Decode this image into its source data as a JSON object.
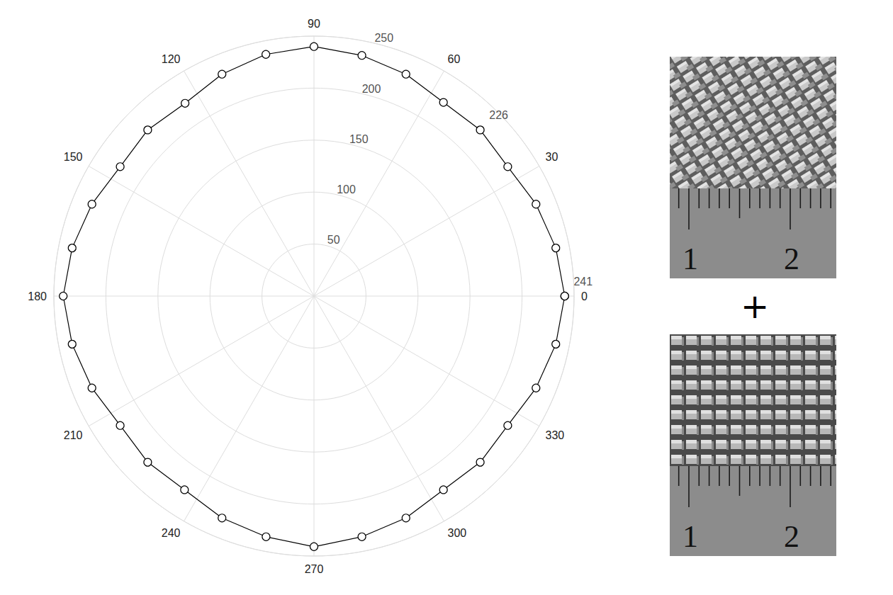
{
  "chart_data": {
    "type": "polar_line",
    "x": [
      0,
      11.25,
      22.5,
      33.75,
      45,
      56.25,
      67.5,
      78.75,
      90,
      101.25,
      112.5,
      123.75,
      135,
      146.25,
      157.5,
      168.75,
      180,
      191.25,
      202.5,
      213.75,
      225,
      236.25,
      247.5,
      258.75,
      270,
      281.25,
      292.5,
      303.75,
      315,
      326.25,
      337.5,
      348.75
    ],
    "values": [
      241,
      237,
      231,
      224,
      226,
      224,
      231,
      236,
      240,
      237,
      231,
      223,
      226,
      224,
      231,
      237,
      241,
      237,
      231,
      224,
      226,
      224,
      231,
      236,
      241,
      236,
      231,
      224,
      226,
      224,
      231,
      237
    ],
    "xlim": [
      0,
      360
    ],
    "xticks": [
      0,
      30,
      60,
      90,
      120,
      150,
      180,
      210,
      240,
      270,
      300,
      330
    ],
    "ylim": [
      0,
      250
    ],
    "yticks": [
      50,
      100,
      150,
      200,
      250
    ],
    "grid": true,
    "color": "#000000",
    "marker": "open_circle",
    "annotations": [
      {
        "x": 0,
        "y": 241,
        "text": "241"
      },
      {
        "x": 45,
        "y": 226,
        "text": "226"
      }
    ],
    "panels": [
      {
        "ruler_labels": [
          "1",
          "2"
        ]
      },
      {
        "ruler_labels": [
          "1",
          "2"
        ]
      }
    ],
    "panel_separator": "+"
  }
}
